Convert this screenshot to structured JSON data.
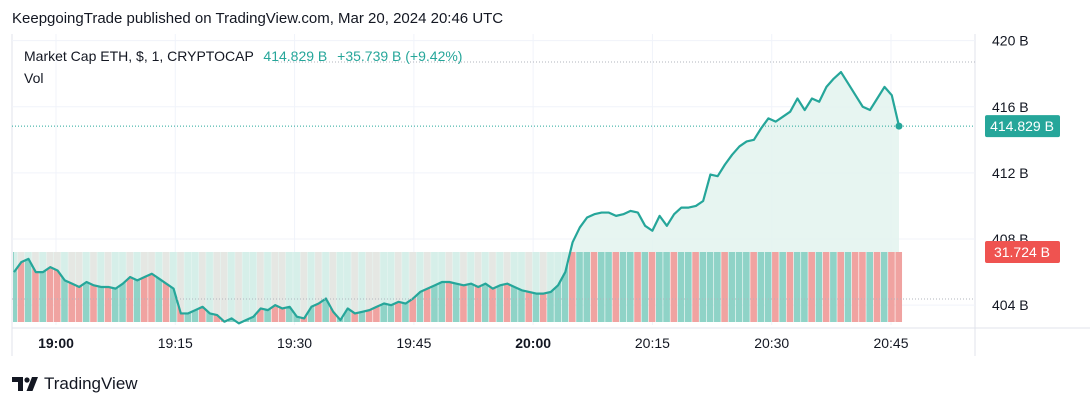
{
  "header": {
    "publish_line": "KeepgoingTrade published on TradingView.com, Mar 20, 2024 20:46 UTC"
  },
  "legend": {
    "symbol": "Market Cap ETH, $, 1, CRYPTOCAP",
    "last": "414.829 B",
    "change": "+35.739 B (+9.42%)",
    "vol_label": "Vol"
  },
  "footer": {
    "brand": "TradingView",
    "logo_icon": "tradingview-logo-icon"
  },
  "colors": {
    "line": "#26a69a",
    "fill": "#e3f3ef",
    "vol_up": "#8fd3c7",
    "vol_down": "#f0a3a1",
    "price_tag": "#26a69a",
    "vol_tag": "#ef5350",
    "grid": "#f0f3fa",
    "axis_text": "#131722"
  },
  "chart_data": {
    "type": "line",
    "series": [
      {
        "values": [
          406.0,
          406.6,
          406.8,
          406.0,
          406.0,
          406.3,
          406.1,
          405.5,
          405.3,
          405.1,
          405.4,
          405.2,
          405.1,
          405.1,
          405.0,
          405.3,
          405.7,
          405.5,
          405.7,
          405.9,
          405.6,
          405.3,
          405.0,
          403.5,
          403.5,
          403.7,
          403.9,
          403.5,
          403.4,
          403.0,
          403.2,
          402.9,
          403.1,
          403.3,
          403.8,
          403.7,
          404.0,
          403.8,
          403.9,
          403.3,
          403.2,
          403.9,
          404.1,
          404.4,
          403.6,
          403.1,
          403.8,
          403.5,
          403.6,
          403.7,
          403.9,
          404.1,
          404.0,
          404.2,
          404.1,
          404.4,
          404.8,
          405.0,
          405.2,
          405.4,
          405.4,
          405.3,
          405.2,
          405.3,
          405.1,
          405.3,
          405.0,
          405.2,
          405.3,
          405.1,
          404.9,
          404.8,
          404.7,
          404.7,
          404.8,
          405.2,
          406.0,
          407.8,
          408.7,
          409.3,
          409.5,
          409.6,
          409.6,
          409.4,
          409.5,
          409.7,
          409.6,
          408.8,
          408.5,
          409.4,
          408.8,
          409.5,
          409.9,
          409.9,
          410.0,
          410.3,
          411.9,
          411.8,
          412.5,
          413.1,
          413.6,
          413.9,
          414.0,
          414.7,
          415.3,
          415.1,
          415.4,
          415.7,
          416.5,
          415.8,
          416.5,
          416.3,
          417.2,
          417.7,
          418.1,
          417.4,
          416.7,
          416.0,
          415.8,
          416.5,
          417.2,
          416.7,
          414.829
        ],
        "volume_colors": [
          "u",
          "d",
          "u",
          "d",
          "u",
          "d",
          "d",
          "u",
          "d",
          "d",
          "u",
          "d",
          "u",
          "d",
          "u",
          "u",
          "d",
          "u",
          "d",
          "d",
          "u",
          "d",
          "u",
          "d",
          "u",
          "u",
          "d",
          "u",
          "d",
          "d",
          "u",
          "d",
          "u",
          "u",
          "d",
          "u",
          "d",
          "d",
          "u",
          "u",
          "d",
          "u",
          "d",
          "u",
          "d",
          "u",
          "u",
          "d",
          "u",
          "d",
          "d",
          "u",
          "u",
          "d",
          "u",
          "d",
          "u",
          "d",
          "u",
          "u",
          "d",
          "u",
          "d",
          "u",
          "d",
          "u",
          "d",
          "u",
          "d",
          "u",
          "u",
          "d",
          "u",
          "d",
          "u",
          "u",
          "u",
          "d",
          "u",
          "u",
          "d",
          "u",
          "u",
          "d",
          "u",
          "u",
          "d",
          "u",
          "d",
          "u",
          "u",
          "d",
          "u",
          "u",
          "d",
          "u",
          "u",
          "u",
          "d",
          "u",
          "u",
          "u",
          "d",
          "u",
          "u",
          "d",
          "u",
          "d",
          "u",
          "u",
          "d",
          "u",
          "d",
          "u",
          "d",
          "u",
          "d",
          "d",
          "u",
          "d",
          "u",
          "d",
          "d"
        ]
      }
    ],
    "x_ticks": [
      "19:00",
      "19:15",
      "19:30",
      "19:45",
      "20:00",
      "20:15",
      "20:30",
      "20:45"
    ],
    "x_ticks_bold": [
      "19:00",
      "20:00"
    ],
    "y_ticks": [
      "420 B",
      "416 B",
      "412 B",
      "408 B",
      "404 B"
    ],
    "y_tick_values": [
      420,
      416,
      412,
      408,
      404
    ],
    "ylim": [
      402.8,
      420.4
    ],
    "last_price_label": "414.829 B",
    "last_volume_label": "31.724 B",
    "grid": true
  }
}
